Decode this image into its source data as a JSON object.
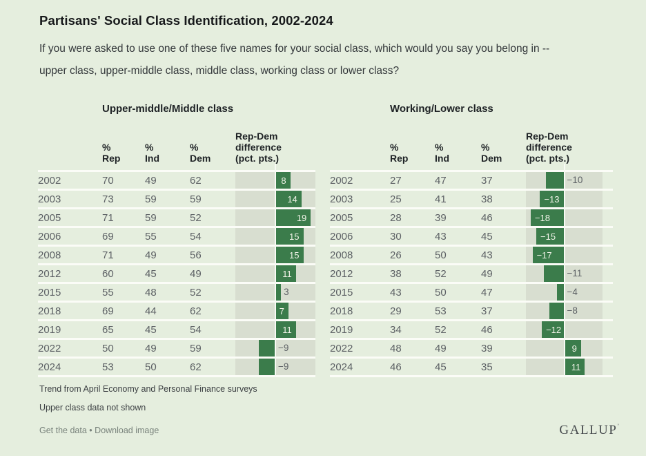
{
  "page": {
    "title": "Partisans' Social Class Identification, 2002-2024",
    "subtitle_line1": "If you were asked to use one of these five names for your social class, which would you say you belong in --",
    "subtitle_line2": "upper class, upper-middle class, middle class, working class or lower class?",
    "footnote1": "Trend from April Economy and Personal Finance surveys",
    "footnote2": "Upper class data not shown",
    "links": {
      "get_data": "Get the data",
      "separator": "•",
      "download": "Download image"
    },
    "logo": "GALLUP",
    "logo_mark": "’"
  },
  "colors": {
    "background": "#e5eede",
    "bar_green": "#3b7c4b",
    "bar_track": "#d8ded0",
    "row_separator": "#fbfcf7",
    "value_text": "#5d6165",
    "header_text": "#1e2225",
    "bar_label_inside": "#f2f4e9"
  },
  "columns": {
    "rep": [
      "%",
      "Rep"
    ],
    "ind": [
      "%",
      "Ind"
    ],
    "dem": [
      "%",
      "Dem"
    ],
    "diff": [
      "Rep-Dem",
      "difference",
      "(pct. pts.)"
    ]
  },
  "chart_data": [
    {
      "type": "table",
      "title": "Upper-middle/Middle class",
      "categories": [
        "2002",
        "2003",
        "2005",
        "2006",
        "2008",
        "2012",
        "2015",
        "2018",
        "2019",
        "2022",
        "2024"
      ],
      "series": [
        {
          "name": "% Rep",
          "values": [
            70,
            73,
            71,
            69,
            71,
            60,
            55,
            69,
            65,
            50,
            53
          ]
        },
        {
          "name": "% Ind",
          "values": [
            49,
            59,
            59,
            55,
            49,
            45,
            48,
            44,
            45,
            49,
            50
          ]
        },
        {
          "name": "% Dem",
          "values": [
            62,
            59,
            52,
            54,
            56,
            49,
            52,
            62,
            54,
            59,
            62
          ]
        },
        {
          "name": "Rep-Dem difference (pct. pts.)",
          "type": "bar",
          "values": [
            8,
            14,
            19,
            15,
            15,
            11,
            3,
            7,
            11,
            -9,
            -9
          ],
          "label_inside": [
            true,
            true,
            true,
            true,
            true,
            true,
            false,
            true,
            true,
            false,
            false
          ],
          "axis_range": [
            -21,
            21
          ]
        }
      ]
    },
    {
      "type": "table",
      "title": "Working/Lower class",
      "categories": [
        "2002",
        "2003",
        "2005",
        "2006",
        "2008",
        "2012",
        "2015",
        "2018",
        "2019",
        "2022",
        "2024"
      ],
      "series": [
        {
          "name": "% Rep",
          "values": [
            27,
            25,
            28,
            30,
            26,
            38,
            43,
            29,
            34,
            48,
            46
          ]
        },
        {
          "name": "% Ind",
          "values": [
            47,
            41,
            39,
            43,
            50,
            52,
            50,
            53,
            52,
            49,
            45
          ]
        },
        {
          "name": "% Dem",
          "values": [
            37,
            38,
            46,
            45,
            43,
            49,
            47,
            37,
            46,
            39,
            35
          ]
        },
        {
          "name": "Rep-Dem difference (pct. pts.)",
          "type": "bar",
          "values": [
            -10,
            -13,
            -18,
            -15,
            -17,
            -11,
            -4,
            -8,
            -12,
            9,
            11
          ],
          "label_inside": [
            false,
            true,
            true,
            true,
            true,
            false,
            false,
            false,
            true,
            true,
            true
          ],
          "axis_range": [
            -21,
            21
          ]
        }
      ]
    }
  ]
}
